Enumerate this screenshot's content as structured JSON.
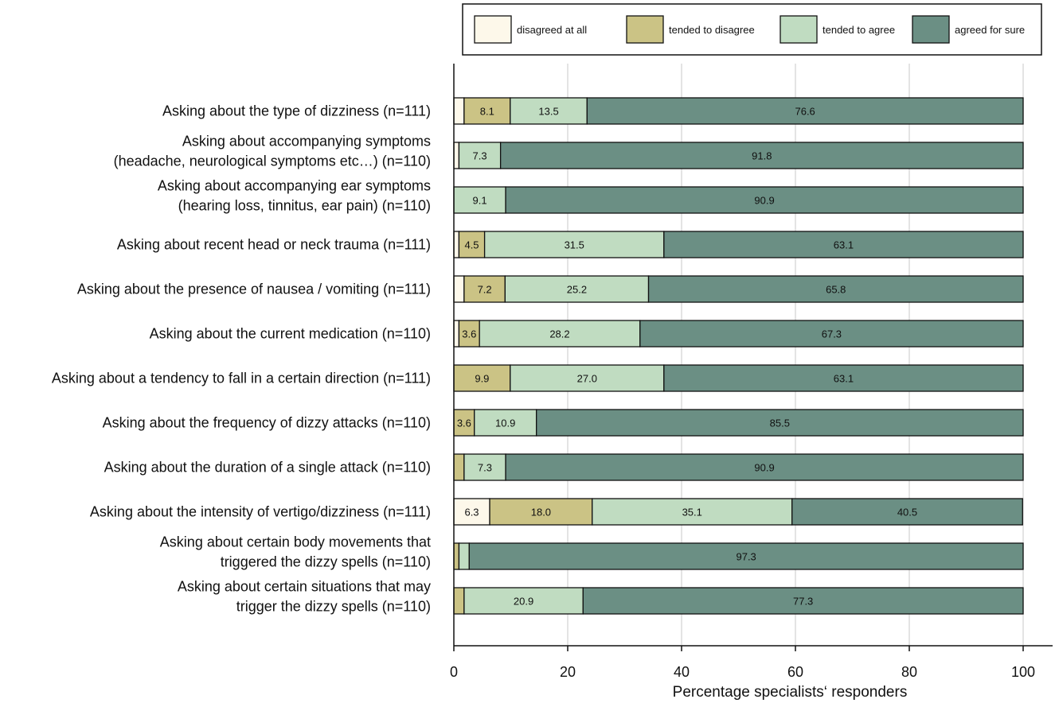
{
  "chart_data": {
    "type": "bar",
    "orientation": "horizontal",
    "stacked": true,
    "title": "",
    "xlabel": "Percentage specialists‘ responders",
    "ylabel": "",
    "xlim": [
      0,
      100
    ],
    "xticks": [
      0,
      20,
      40,
      60,
      80,
      100
    ],
    "xtick_labels": [
      "0",
      "20",
      "40",
      "60",
      "80",
      "100"
    ],
    "grid": true,
    "legend_position": "top",
    "categories": [
      [
        "Asking about the type of dizziness (n=111)"
      ],
      [
        "Asking about accompanying symptoms",
        "(headache, neurological symptoms etc…) (n=110)"
      ],
      [
        "Asking about accompanying ear symptoms",
        "(hearing loss, tinnitus, ear pain) (n=110)"
      ],
      [
        "Asking about recent head or neck trauma (n=111)"
      ],
      [
        "Asking about the presence of nausea / vomiting (n=111)"
      ],
      [
        "Asking about the current medication  (n=110)"
      ],
      [
        "Asking about a tendency to fall in a certain direction (n=111)"
      ],
      [
        "Asking about the frequency of dizzy attacks (n=110)"
      ],
      [
        "Asking about the duration of a single attack (n=110)"
      ],
      [
        "Asking about the intensity of vertigo/dizziness (n=111)"
      ],
      [
        "Asking about certain body movements that",
        "triggered the dizzy spells (n=110)"
      ],
      [
        "Asking about certain situations that may",
        "trigger the dizzy spells (n=110)"
      ]
    ],
    "series": [
      {
        "name": "disagreed at all",
        "color": "#fdf8ea",
        "values": [
          1.8,
          0.9,
          0.0,
          0.9,
          1.8,
          0.9,
          0.0,
          0.0,
          0.0,
          6.3,
          0.0,
          0.0
        ],
        "labels": [
          "",
          "",
          "",
          "",
          "",
          "",
          "",
          "",
          "",
          "6.3",
          "",
          ""
        ]
      },
      {
        "name": "tended to disagree",
        "color": "#cbc385",
        "values": [
          8.1,
          0.0,
          0.0,
          4.5,
          7.2,
          3.6,
          9.9,
          3.6,
          1.8,
          18.0,
          0.9,
          1.8
        ],
        "labels": [
          "8.1",
          "",
          "",
          "4.5",
          "7.2",
          "3.6",
          "9.9",
          "3.6",
          "",
          "18.0",
          "",
          ""
        ]
      },
      {
        "name": "tended to agree",
        "color": "#c0dcc1",
        "values": [
          13.5,
          7.3,
          9.1,
          31.5,
          25.2,
          28.2,
          27.0,
          10.9,
          7.3,
          35.1,
          1.8,
          20.9
        ],
        "labels": [
          "13.5",
          "7.3",
          "9.1",
          "31.5",
          "25.2",
          "28.2",
          "27.0",
          "10.9",
          "7.3",
          "35.1",
          "",
          "20.9"
        ]
      },
      {
        "name": "agreed for sure",
        "color": "#6b8f84",
        "values": [
          76.6,
          91.8,
          90.9,
          63.1,
          65.8,
          67.3,
          63.1,
          85.5,
          90.9,
          40.5,
          97.3,
          77.3
        ],
        "labels": [
          "76.6",
          "91.8",
          "90.9",
          "63.1",
          "65.8",
          "67.3",
          "63.1",
          "85.5",
          "90.9",
          "40.5",
          "97.3",
          "77.3"
        ]
      }
    ]
  }
}
